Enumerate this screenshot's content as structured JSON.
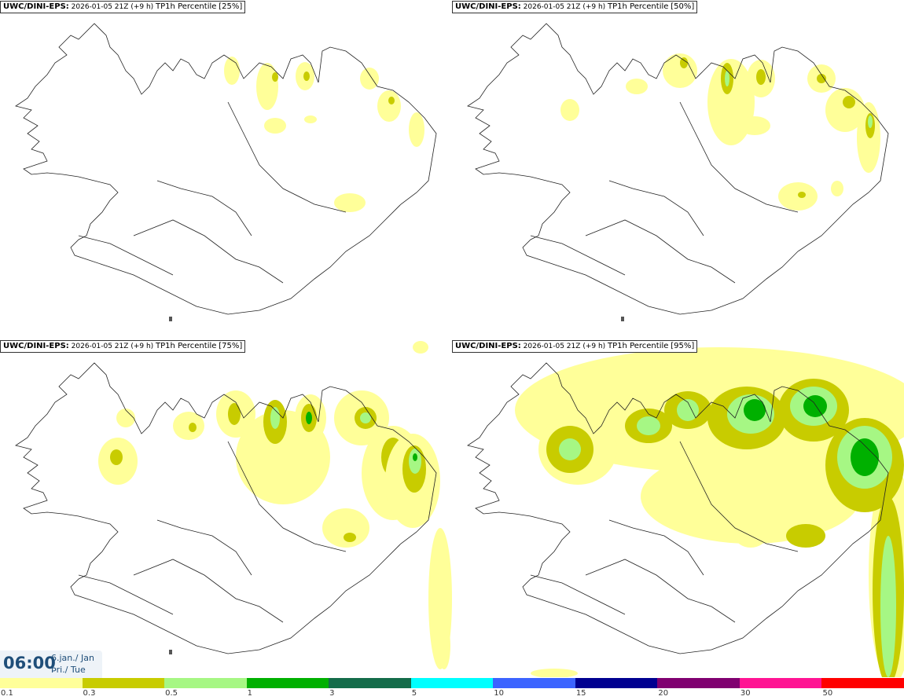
{
  "panels": [
    {
      "id": "p25",
      "source": "UWC/DINI-EPS",
      "sep": ":",
      "run": "2026-01-05 21Z",
      "lead": "(+9 h)",
      "field": "TP1h Percentile",
      "pct": "[25%]"
    },
    {
      "id": "p50",
      "source": "UWC/DINI-EPS",
      "sep": ":",
      "run": "2026-01-05 21Z",
      "lead": "(+9 h)",
      "field": "TP1h Percentile",
      "pct": "[50%]"
    },
    {
      "id": "p75",
      "source": "UWC/DINI-EPS",
      "sep": ":",
      "run": "2026-01-05 21Z",
      "lead": "(+9 h)",
      "field": "TP1h Percentile",
      "pct": "[75%]"
    },
    {
      "id": "p95",
      "source": "UWC/DINI-EPS",
      "sep": ":",
      "run": "2026-01-05 21Z",
      "lead": "(+9 h)",
      "field": "TP1h Percentile",
      "pct": "[95%]"
    }
  ],
  "time": {
    "hour": "06:00",
    "date_line": "6.jan./ Jan",
    "day_line": "Þri./ Tue"
  },
  "colorbar": {
    "colors": [
      "#ffff99",
      "#c8cc00",
      "#a6f784",
      "#00b000",
      "#146c4a",
      "#00ffff",
      "#3c64ff",
      "#000090",
      "#800070",
      "#ff1493",
      "#ff0000"
    ],
    "labels": [
      "0.1",
      "0.3",
      "0.5",
      "1",
      "3",
      "5",
      "10",
      "15",
      "20",
      "30",
      "50"
    ]
  }
}
